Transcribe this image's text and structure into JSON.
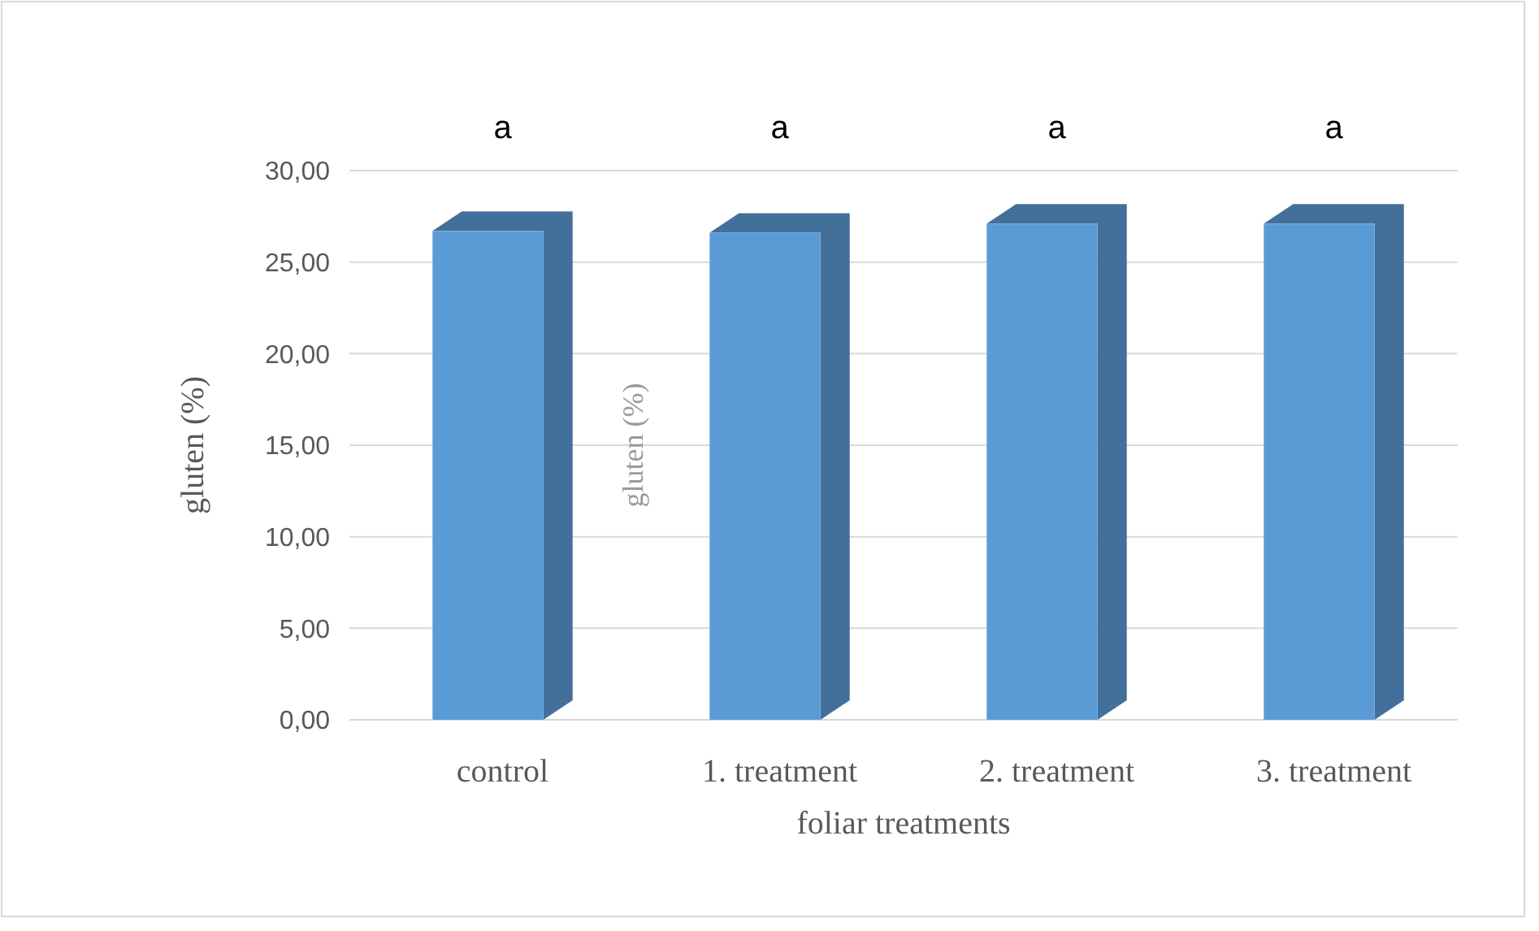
{
  "chart_data": {
    "type": "bar",
    "xlabel": "foliar treatments",
    "ylabel": "gluten (%)",
    "categories": [
      "control",
      "1. treatment",
      "2. treatment",
      "3. treatment"
    ],
    "values": [
      26.7,
      26.6,
      27.1,
      27.1
    ],
    "color": "#5b9bd5",
    "ylim": [
      0,
      30
    ],
    "yticks": [
      {
        "value": 0,
        "label": "0,00"
      },
      {
        "value": 5,
        "label": "5,00"
      },
      {
        "value": 10,
        "label": "10,00"
      },
      {
        "value": 15,
        "label": "15,00"
      },
      {
        "value": 20,
        "label": "20,00"
      },
      {
        "value": 25,
        "label": "25,00"
      },
      {
        "value": 30,
        "label": "30,00"
      }
    ],
    "grid": "y",
    "annotations": [
      "a",
      "a",
      "a",
      "a",
      "gluten (%)"
    ]
  }
}
